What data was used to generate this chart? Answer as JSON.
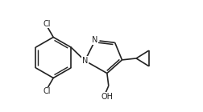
{
  "bg_color": "#ffffff",
  "line_color": "#222222",
  "line_width": 1.2,
  "font_size": 7.0,
  "fig_w": 2.52,
  "fig_h": 1.4,
  "dpi": 100,
  "xlim": [
    0,
    252
  ],
  "ylim": [
    0,
    140
  ]
}
